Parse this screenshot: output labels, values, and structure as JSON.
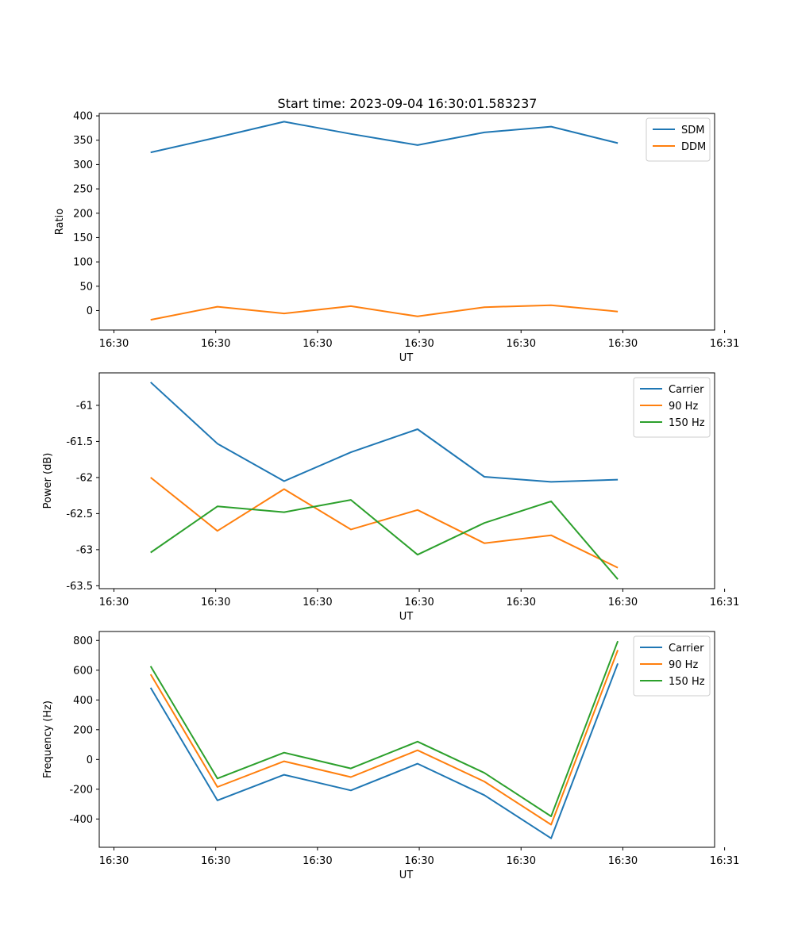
{
  "title": "Start time: 2023-09-04 16:30:01.583237",
  "colors": {
    "blue": "#1f77b4",
    "orange": "#ff7f0e",
    "green": "#2ca02c"
  },
  "chart_data": [
    {
      "type": "line",
      "ylabel": "Ratio",
      "xlabel": "UT",
      "ylim": [
        -40,
        405
      ],
      "yticks": [
        0,
        50,
        100,
        150,
        200,
        250,
        300,
        350,
        400
      ],
      "xlim": [
        -0.77,
        8.45
      ],
      "xticks": [
        {
          "pos": -0.55,
          "label": "16:30"
        },
        {
          "pos": 0.975,
          "label": "16:30"
        },
        {
          "pos": 2.5,
          "label": "16:30"
        },
        {
          "pos": 4.025,
          "label": "16:30"
        },
        {
          "pos": 5.55,
          "label": "16:30"
        },
        {
          "pos": 7.075,
          "label": "16:30"
        },
        {
          "pos": 8.6,
          "label": "16:31"
        }
      ],
      "x": [
        0,
        1,
        2,
        3,
        4,
        5,
        6,
        7
      ],
      "legend": "top-right",
      "series": [
        {
          "name": "SDM",
          "color": "#1f77b4",
          "values": [
            325,
            356,
            388,
            363,
            340,
            366,
            378,
            344
          ]
        },
        {
          "name": "DDM",
          "color": "#ff7f0e",
          "values": [
            -19,
            8,
            -6,
            9,
            -12,
            7,
            11,
            -2
          ]
        }
      ]
    },
    {
      "type": "line",
      "ylabel": "Power (dB)",
      "xlabel": "UT",
      "ylim": [
        -63.54,
        -60.55
      ],
      "yticks": [
        -61.0,
        -61.5,
        -62.0,
        -62.5,
        -63.0,
        -63.5
      ],
      "xlim": [
        -0.77,
        8.45
      ],
      "xticks": [
        {
          "pos": -0.55,
          "label": "16:30"
        },
        {
          "pos": 0.975,
          "label": "16:30"
        },
        {
          "pos": 2.5,
          "label": "16:30"
        },
        {
          "pos": 4.025,
          "label": "16:30"
        },
        {
          "pos": 5.55,
          "label": "16:30"
        },
        {
          "pos": 7.075,
          "label": "16:30"
        },
        {
          "pos": 8.6,
          "label": "16:31"
        }
      ],
      "x": [
        0,
        1,
        2,
        3,
        4,
        5,
        6,
        7
      ],
      "legend": "top-right",
      "series": [
        {
          "name": "Carrier",
          "color": "#1f77b4",
          "values": [
            -60.68,
            -61.53,
            -62.05,
            -61.65,
            -61.33,
            -61.99,
            -62.06,
            -62.03
          ]
        },
        {
          "name": "90 Hz",
          "color": "#ff7f0e",
          "values": [
            -62.0,
            -62.74,
            -62.16,
            -62.72,
            -62.45,
            -62.91,
            -62.8,
            -63.25
          ]
        },
        {
          "name": "150 Hz",
          "color": "#2ca02c",
          "values": [
            -63.04,
            -62.4,
            -62.48,
            -62.31,
            -63.07,
            -62.63,
            -62.33,
            -63.41
          ]
        }
      ]
    },
    {
      "type": "line",
      "ylabel": "Frequency (Hz)",
      "xlabel": "UT",
      "ylim": [
        -590,
        860
      ],
      "yticks": [
        800,
        600,
        400,
        200,
        0,
        -200,
        -400
      ],
      "xlim": [
        -0.77,
        8.45
      ],
      "xticks": [
        {
          "pos": -0.55,
          "label": "16:30"
        },
        {
          "pos": 0.975,
          "label": "16:30"
        },
        {
          "pos": 2.5,
          "label": "16:30"
        },
        {
          "pos": 4.025,
          "label": "16:30"
        },
        {
          "pos": 5.55,
          "label": "16:30"
        },
        {
          "pos": 7.075,
          "label": "16:30"
        },
        {
          "pos": 8.6,
          "label": "16:31"
        }
      ],
      "x": [
        0,
        1,
        2,
        3,
        4,
        5,
        6,
        7
      ],
      "legend": "top-right",
      "series": [
        {
          "name": "Carrier",
          "color": "#1f77b4",
          "values": [
            482,
            -275,
            -103,
            -208,
            -28,
            -240,
            -530,
            645
          ]
        },
        {
          "name": "90 Hz",
          "color": "#ff7f0e",
          "values": [
            572,
            -185,
            -12,
            -118,
            62,
            -148,
            -438,
            735
          ]
        },
        {
          "name": "150 Hz",
          "color": "#2ca02c",
          "values": [
            627,
            -128,
            46,
            -60,
            120,
            -90,
            -382,
            795
          ]
        }
      ]
    }
  ]
}
